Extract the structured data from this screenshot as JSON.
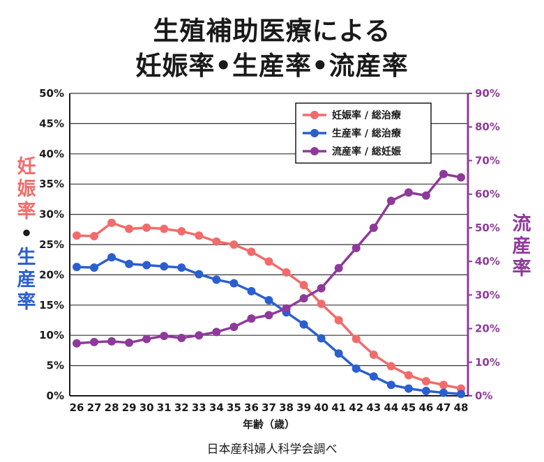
{
  "title_line1": "生殖補助医療による",
  "title_line2": "妊娠率•生産率•流産率",
  "source": "日本産科婦人科学会調べ",
  "colors": {
    "pregnancy": "#f26b6b",
    "live_birth": "#2b5fcf",
    "miscarriage": "#8e3a9a",
    "grid": "#1a1a1a"
  },
  "chart_data": {
    "type": "line",
    "xlabel": "年齢（歳）",
    "ylabel_left_parts": [
      {
        "text": "妊娠率",
        "color": "#f26b6b"
      },
      {
        "text": "•",
        "color": "#1a1a1a"
      },
      {
        "text": "生産率",
        "color": "#2b5fcf"
      }
    ],
    "ylabel_right": "流産率",
    "x": [
      26,
      27,
      28,
      29,
      30,
      31,
      32,
      33,
      34,
      35,
      36,
      37,
      38,
      39,
      40,
      41,
      42,
      43,
      44,
      45,
      46,
      47,
      48
    ],
    "xticks": [
      "26",
      "27",
      "28",
      "29",
      "30",
      "31",
      "32",
      "33",
      "34",
      "35",
      "36",
      "37",
      "38",
      "39",
      "40",
      "41",
      "42",
      "43",
      "44",
      "45",
      "46",
      "47",
      "48"
    ],
    "ylim_left": [
      0,
      50
    ],
    "yticks_left": [
      "0%",
      "5%",
      "10%",
      "15%",
      "20%",
      "25%",
      "30%",
      "35%",
      "40%",
      "45%",
      "50%"
    ],
    "ylim_right": [
      0,
      90
    ],
    "yticks_right": [
      "0%",
      "10%",
      "20%",
      "30%",
      "40%",
      "50%",
      "60%",
      "70%",
      "80%",
      "90%"
    ],
    "grid": true,
    "legend_position": "top-right",
    "series": [
      {
        "name": "妊娠率 / 総治療",
        "axis": "left",
        "color": "#f26b6b",
        "values": [
          26.5,
          26.4,
          28.6,
          27.6,
          27.8,
          27.6,
          27.2,
          26.5,
          25.5,
          25.0,
          23.8,
          22.2,
          20.4,
          18.3,
          15.2,
          12.5,
          9.4,
          6.8,
          4.9,
          3.4,
          2.4,
          1.8,
          1.2
        ]
      },
      {
        "name": "生産率 / 総治療",
        "axis": "left",
        "color": "#2b5fcf",
        "values": [
          21.3,
          21.2,
          22.9,
          21.8,
          21.6,
          21.4,
          21.2,
          20.1,
          19.2,
          18.6,
          17.3,
          15.8,
          13.8,
          11.8,
          9.5,
          7.0,
          4.5,
          3.2,
          1.8,
          1.2,
          0.8,
          0.5,
          0.3
        ]
      },
      {
        "name": "流産率 / 総妊娠",
        "axis": "right",
        "color": "#8e3a9a",
        "values": [
          15.6,
          16.0,
          16.2,
          15.8,
          16.9,
          17.8,
          17.2,
          18.0,
          19.0,
          20.5,
          23.0,
          24.0,
          26.0,
          29.0,
          32.0,
          38.0,
          44.0,
          50.0,
          58.0,
          60.5,
          59.6,
          66.0,
          65.0
        ]
      }
    ]
  }
}
